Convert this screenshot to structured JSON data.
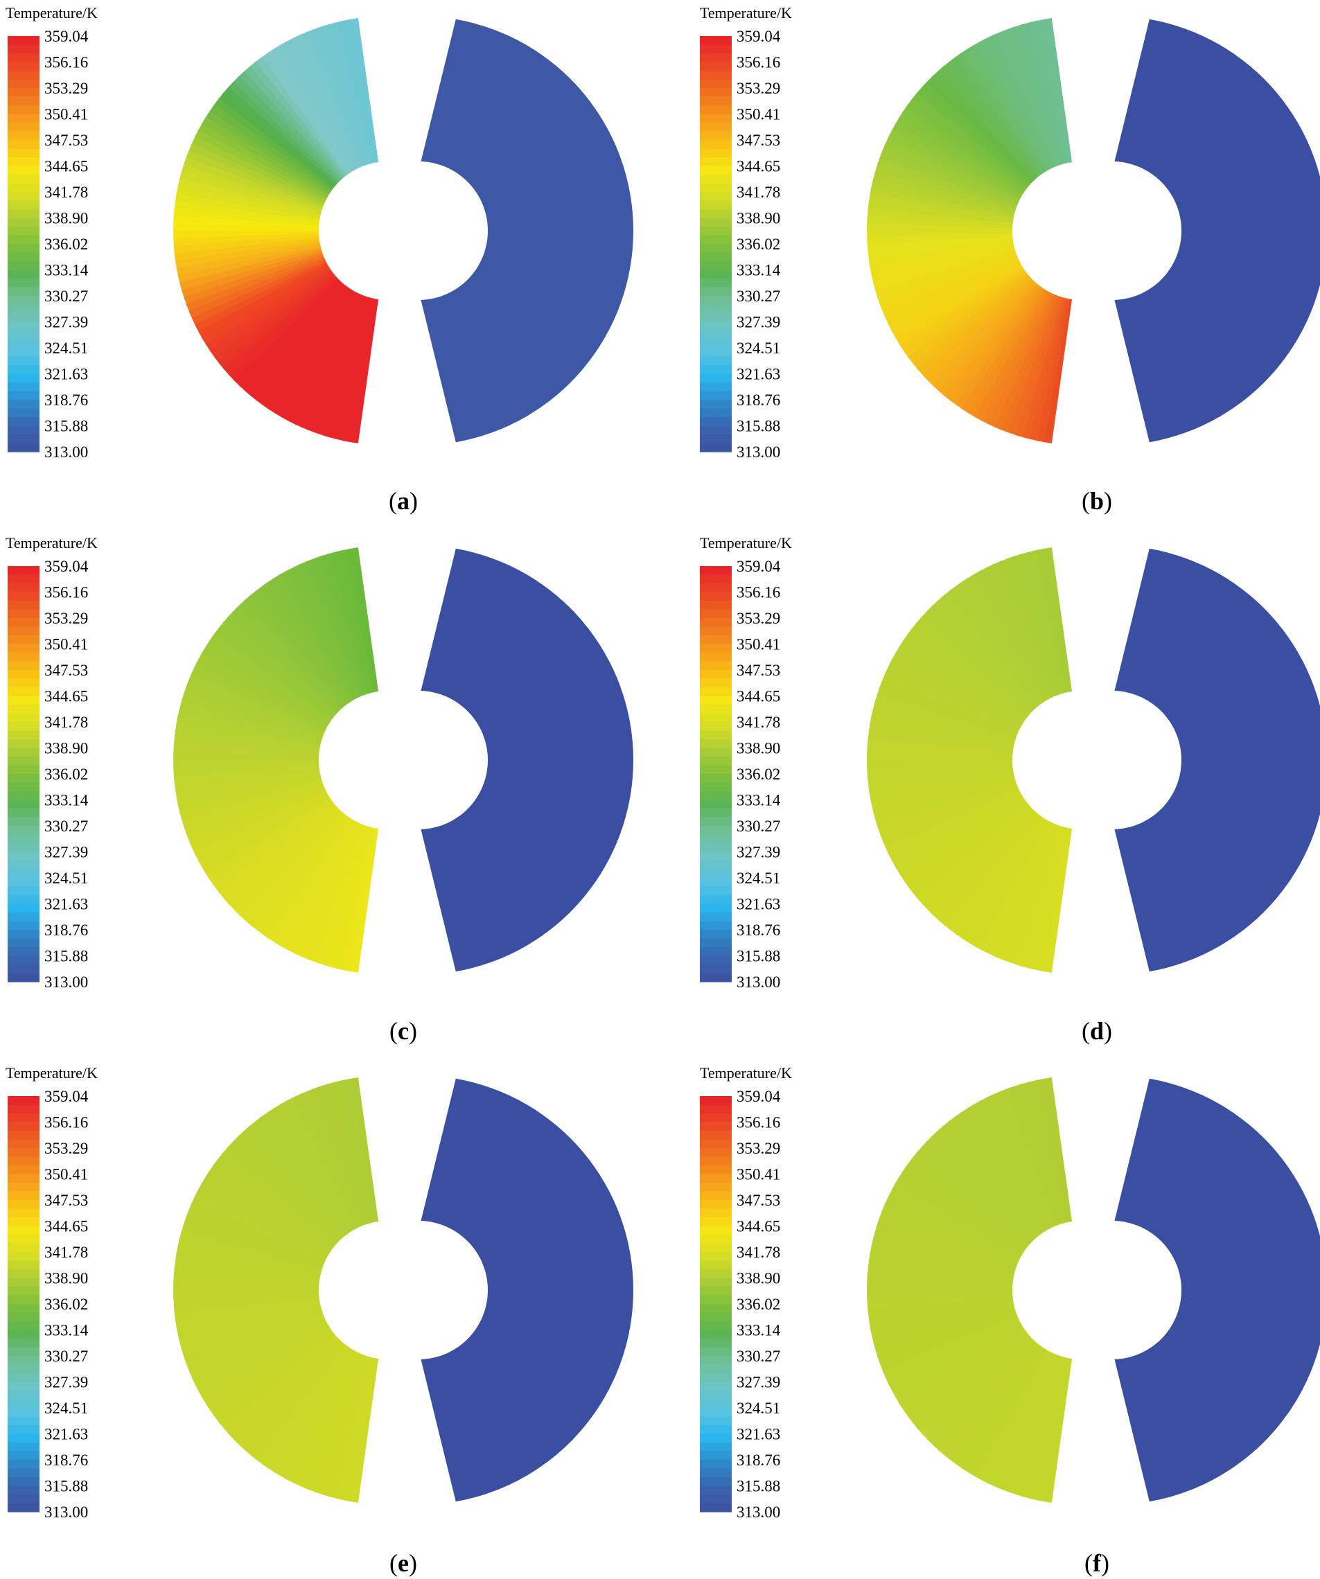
{
  "colorbar": {
    "title": "Temperature/K",
    "ticks": [
      "359.04",
      "356.16",
      "353.29",
      "350.41",
      "347.53",
      "344.65",
      "341.78",
      "338.90",
      "336.02",
      "333.14",
      "330.27",
      "327.39",
      "324.51",
      "321.63",
      "318.76",
      "315.88",
      "313.00"
    ],
    "colors_top_to_bottom": [
      "#e8262a",
      "#ec4a24",
      "#f0701f",
      "#f5981b",
      "#fac115",
      "#f5e614",
      "#d6dd25",
      "#a8cc35",
      "#79bf3d",
      "#5cb454",
      "#6fbf95",
      "#6dc4c4",
      "#58c2e0",
      "#2ab5ec",
      "#2f86c8",
      "#3a62ad",
      "#3f4d9e"
    ]
  },
  "panels": [
    {
      "label": "a",
      "cold_side_color": "#3f58a6",
      "hot_side_stops": [
        {
          "angle_deg": 98,
          "color": "#6cc7d4"
        },
        {
          "angle_deg": 125,
          "color": "#82c8c8"
        },
        {
          "angle_deg": 140,
          "color": "#52ae48"
        },
        {
          "angle_deg": 162,
          "color": "#c9d82a"
        },
        {
          "angle_deg": 178,
          "color": "#f8eb0d"
        },
        {
          "angle_deg": 192,
          "color": "#f6b21a"
        },
        {
          "angle_deg": 208,
          "color": "#ee4a23"
        },
        {
          "angle_deg": 225,
          "color": "#e8262a"
        },
        {
          "angle_deg": 262,
          "color": "#e8262a"
        }
      ]
    },
    {
      "label": "b",
      "cold_side_color": "#3a4fa2",
      "hot_side_stops": [
        {
          "angle_deg": 98,
          "color": "#6fbf95"
        },
        {
          "angle_deg": 118,
          "color": "#6dbd7a"
        },
        {
          "angle_deg": 135,
          "color": "#68b944"
        },
        {
          "angle_deg": 160,
          "color": "#a5cc36"
        },
        {
          "angle_deg": 185,
          "color": "#e6e21c"
        },
        {
          "angle_deg": 210,
          "color": "#f5d215"
        },
        {
          "angle_deg": 232,
          "color": "#f6a21a"
        },
        {
          "angle_deg": 250,
          "color": "#f07020"
        },
        {
          "angle_deg": 262,
          "color": "#ea4a23"
        }
      ]
    },
    {
      "label": "c",
      "cold_side_color": "#3a4fa2",
      "hot_side_stops": [
        {
          "angle_deg": 98,
          "color": "#6ab93b"
        },
        {
          "angle_deg": 130,
          "color": "#8cc43a"
        },
        {
          "angle_deg": 170,
          "color": "#b5d132"
        },
        {
          "angle_deg": 215,
          "color": "#d8dc22"
        },
        {
          "angle_deg": 262,
          "color": "#ece61a"
        }
      ]
    },
    {
      "label": "d",
      "cold_side_color": "#3a4fa2",
      "hot_side_stops": [
        {
          "angle_deg": 98,
          "color": "#a6cc38"
        },
        {
          "angle_deg": 160,
          "color": "#bcd32f"
        },
        {
          "angle_deg": 215,
          "color": "#cdd926"
        },
        {
          "angle_deg": 262,
          "color": "#d8de22"
        }
      ]
    },
    {
      "label": "e",
      "cold_side_color": "#3a4fa2",
      "hot_side_stops": [
        {
          "angle_deg": 98,
          "color": "#aecd35"
        },
        {
          "angle_deg": 180,
          "color": "#c0d42d"
        },
        {
          "angle_deg": 262,
          "color": "#cfda25"
        }
      ]
    },
    {
      "label": "f",
      "cold_side_color": "#3a4fa2",
      "hot_side_stops": [
        {
          "angle_deg": 98,
          "color": "#b0ce34"
        },
        {
          "angle_deg": 180,
          "color": "#bad22f"
        },
        {
          "angle_deg": 262,
          "color": "#c3d62b"
        }
      ]
    }
  ]
}
